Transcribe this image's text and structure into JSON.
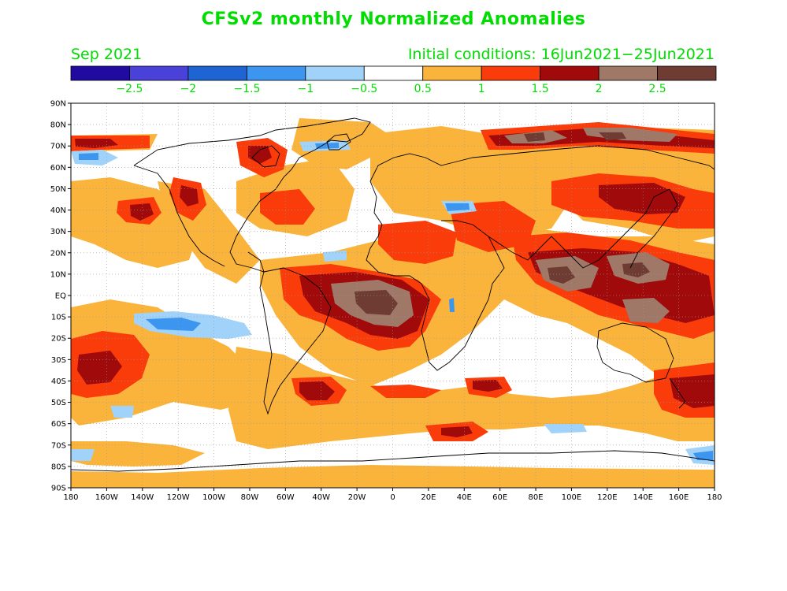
{
  "title": "CFSv2 monthly Normalized Anomalies",
  "valid_month": "Sep 2021",
  "init_conditions": "Initial conditions: 16Jun2021−25Jun2021",
  "text_color": "#00dd00",
  "colorbar": {
    "colors": [
      "#200aa0",
      "#4a42d8",
      "#1e64d2",
      "#3c96f0",
      "#a0d2fa",
      "#ffffff",
      "#fab43c",
      "#fa3c0a",
      "#a00a0a",
      "#a07868",
      "#6e3c32"
    ],
    "labels": [
      "−2.5",
      "−2",
      "−1.5",
      "−1",
      "−0.5",
      "0.5",
      "1",
      "1.5",
      "2",
      "2.5"
    ]
  },
  "lat_labels": [
    "90N",
    "80N",
    "70N",
    "60N",
    "50N",
    "40N",
    "30N",
    "20N",
    "10N",
    "EQ",
    "10S",
    "20S",
    "30S",
    "40S",
    "50S",
    "60S",
    "70S",
    "80S",
    "90S"
  ],
  "lon_labels": [
    "180",
    "160W",
    "140W",
    "120W",
    "100W",
    "80W",
    "60W",
    "40W",
    "20W",
    "0",
    "20E",
    "40E",
    "60E",
    "80E",
    "100E",
    "120E",
    "140E",
    "160E",
    "180"
  ]
}
